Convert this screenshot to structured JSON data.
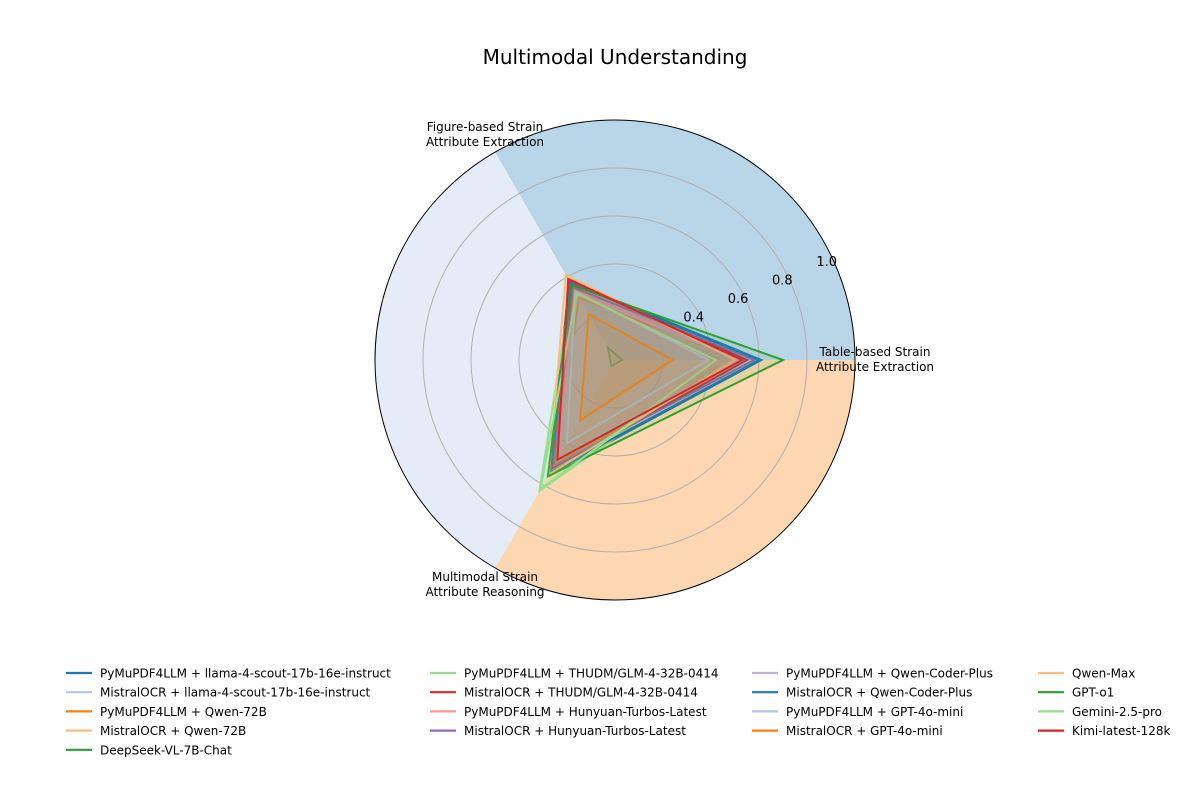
{
  "chart_data": {
    "type": "radar",
    "title": "Multimodal Understanding",
    "axes": [
      [
        "Table-based Strain",
        "Attribute Extraction"
      ],
      [
        "Figure-based Strain",
        "Attribute Extraction"
      ],
      [
        "Multimodal Strain",
        "Attribute Reasoning"
      ]
    ],
    "rlim": [
      0,
      1.0
    ],
    "rticks": [
      0.4,
      0.6,
      0.8,
      1.0
    ],
    "rtick_labels": [
      "0.4",
      "0.6",
      "0.8",
      "1.0"
    ],
    "grid_rings": [
      0.2,
      0.4,
      0.6,
      0.8
    ],
    "grid": true,
    "legend_placement": "bottom",
    "sector_colors": [
      "#b9d5e8",
      "#e4edf7",
      "#fdd7b1"
    ],
    "series": [
      {
        "name": "PyMuPDF4LLM + llama-4-scout-17b-16e-instruct",
        "color": "#1f77b4",
        "values": [
          0.61,
          0.38,
          0.55
        ]
      },
      {
        "name": "MistralOCR + llama-4-scout-17b-16e-instruct",
        "color": "#aec7e8",
        "values": [
          0.58,
          0.36,
          0.47
        ]
      },
      {
        "name": "PyMuPDF4LLM + Qwen-72B",
        "color": "#ff7f0e",
        "values": [
          0.53,
          0.3,
          0.5
        ]
      },
      {
        "name": "MistralOCR + Qwen-72B",
        "color": "#ffbb78",
        "values": [
          0.54,
          0.38,
          0.52
        ]
      },
      {
        "name": "DeepSeek-VL-7B-Chat",
        "color": "#2ca02c",
        "values": [
          0.03,
          0.06,
          0.03
        ]
      },
      {
        "name": "PyMuPDF4LLM + THUDM/GLM-4-32B-0414",
        "color": "#98df8a",
        "values": [
          0.46,
          0.36,
          0.63
        ]
      },
      {
        "name": "MistralOCR + THUDM/GLM-4-32B-0414",
        "color": "#d62728",
        "values": [
          0.55,
          0.38,
          0.52
        ]
      },
      {
        "name": "PyMuPDF4LLM + Hunyuan-Turbos-Latest",
        "color": "#ff9896",
        "values": [
          0.52,
          0.34,
          0.48
        ]
      },
      {
        "name": "MistralOCR + Hunyuan-Turbos-Latest",
        "color": "#9467bd",
        "values": [
          0.58,
          0.35,
          0.51
        ]
      },
      {
        "name": "PyMuPDF4LLM + Qwen-Coder-Plus",
        "color": "#c5b0d5",
        "values": [
          0.52,
          0.32,
          0.47
        ]
      },
      {
        "name": "MistralOCR + Qwen-Coder-Plus",
        "color": "#1f77b4",
        "values": [
          0.6,
          0.37,
          0.54
        ]
      },
      {
        "name": "PyMuPDF4LLM + GPT-4o-mini",
        "color": "#aec7e8",
        "values": [
          0.39,
          0.33,
          0.4
        ]
      },
      {
        "name": "MistralOCR + GPT-4o-mini",
        "color": "#ff7f0e",
        "values": [
          0.24,
          0.22,
          0.29
        ]
      },
      {
        "name": "Qwen-Max",
        "color": "#ffbb78",
        "values": [
          0.5,
          0.41,
          0.55
        ]
      },
      {
        "name": "GPT-o1",
        "color": "#2ca02c",
        "values": [
          0.7,
          0.36,
          0.56
        ]
      },
      {
        "name": "Gemini-2.5-pro",
        "color": "#98df8a",
        "values": [
          0.42,
          0.32,
          0.62
        ]
      },
      {
        "name": "Kimi-latest-128k",
        "color": "#d62728",
        "values": [
          0.53,
          0.39,
          0.48
        ]
      }
    ]
  }
}
